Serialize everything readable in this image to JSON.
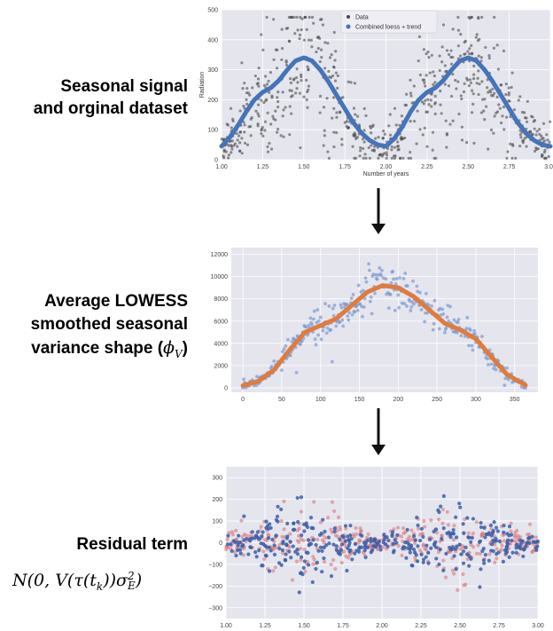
{
  "labels": {
    "panel1": [
      "Seasonal signal",
      "and orginal dataset"
    ],
    "panel2": [
      "Average LOWESS",
      "smoothed seasonal",
      "variance shape ("
    ],
    "panel2_symbol": "ϕ",
    "panel2_sub": "V",
    "panel2_close": ")",
    "panel3": "Residual term",
    "formula_pre": "N(0, V(τ(t",
    "formula_sub_k": "k",
    "formula_mid": "))σ",
    "formula_sup": "2",
    "formula_sub": "E",
    "formula_post": ")"
  },
  "colors": {
    "plot_bg": "#e5e5ee",
    "grid": "#ffffff",
    "data_gray": "#4a4a4a",
    "trend_blue": "#4474b9",
    "variance_orange": "#e07b3c",
    "variance_points": "#7a9ad0",
    "resid_blue": "#3a5fa8",
    "resid_red": "#d9777a",
    "arrow": "#111111"
  },
  "chart_data": [
    {
      "type": "scatter",
      "title": "",
      "xlabel": "Number of years",
      "ylabel": "Radiation",
      "xlim": [
        1.0,
        3.0
      ],
      "ylim": [
        0,
        500
      ],
      "xticks": [
        "1.00",
        "1.25",
        "1.50",
        "1.75",
        "2.00",
        "2.25",
        "2.50",
        "2.75",
        "3.00"
      ],
      "yticks": [
        "0",
        "100",
        "200",
        "300",
        "400",
        "500"
      ],
      "grid": true,
      "legend_position": "top-center",
      "series": [
        {
          "name": "Data",
          "kind": "scatter",
          "color": "#4a4a4a",
          "description": "noisy daily radiation points following the seasonal cycle"
        },
        {
          "name": "Combined loess + trend",
          "kind": "line",
          "color": "#4474b9",
          "x": [
            1.0,
            1.05,
            1.1,
            1.15,
            1.2,
            1.25,
            1.3,
            1.35,
            1.4,
            1.45,
            1.5,
            1.55,
            1.6,
            1.65,
            1.7,
            1.75,
            1.8,
            1.85,
            1.9,
            1.95,
            2.0,
            2.05,
            2.1,
            2.15,
            2.2,
            2.25,
            2.3,
            2.35,
            2.4,
            2.45,
            2.5,
            2.55,
            2.6,
            2.65,
            2.7,
            2.75,
            2.8,
            2.85,
            2.9,
            2.95,
            3.0
          ],
          "y": [
            45,
            75,
            115,
            160,
            200,
            225,
            240,
            265,
            300,
            330,
            340,
            330,
            300,
            260,
            215,
            170,
            125,
            90,
            65,
            50,
            45,
            70,
            110,
            160,
            200,
            225,
            240,
            265,
            300,
            330,
            340,
            330,
            300,
            260,
            215,
            170,
            125,
            90,
            65,
            50,
            45
          ]
        }
      ]
    },
    {
      "type": "scatter",
      "title": "",
      "xlabel": "",
      "ylabel": "",
      "xlim": [
        -15,
        380
      ],
      "ylim": [
        -400,
        12600
      ],
      "xticks": [
        "0",
        "50",
        "100",
        "150",
        "200",
        "250",
        "300",
        "350"
      ],
      "yticks": [
        "0",
        "2000",
        "4000",
        "6000",
        "8000",
        "10000",
        "12000"
      ],
      "grid": true,
      "series": [
        {
          "kind": "scatter",
          "color": "#7a9ad0",
          "description": "daily variance estimates"
        },
        {
          "kind": "line",
          "color": "#e07b3c",
          "x": [
            0,
            20,
            40,
            60,
            80,
            100,
            120,
            140,
            160,
            180,
            200,
            220,
            240,
            260,
            280,
            300,
            320,
            340,
            365
          ],
          "y": [
            200,
            600,
            1600,
            3400,
            5000,
            5600,
            6200,
            7400,
            8600,
            9200,
            9000,
            8200,
            7000,
            5800,
            5200,
            4400,
            2800,
            1200,
            200
          ]
        }
      ]
    },
    {
      "type": "scatter",
      "title": "",
      "xlabel": "",
      "ylabel": "",
      "xlim": [
        1.0,
        3.0
      ],
      "ylim": [
        -350,
        350
      ],
      "xticks": [
        "1.00",
        "1.25",
        "1.50",
        "1.75",
        "2.00",
        "2.25",
        "2.50",
        "2.75",
        "3.00"
      ],
      "yticks": [
        "300",
        "200",
        "100",
        "0",
        "−100",
        "−200",
        "−300"
      ],
      "grid": true,
      "series": [
        {
          "kind": "scatter",
          "color": "#3a5fa8",
          "description": "residual samples"
        },
        {
          "kind": "scatter",
          "color": "#d9777a",
          "description": "simulated residual samples"
        }
      ]
    }
  ]
}
